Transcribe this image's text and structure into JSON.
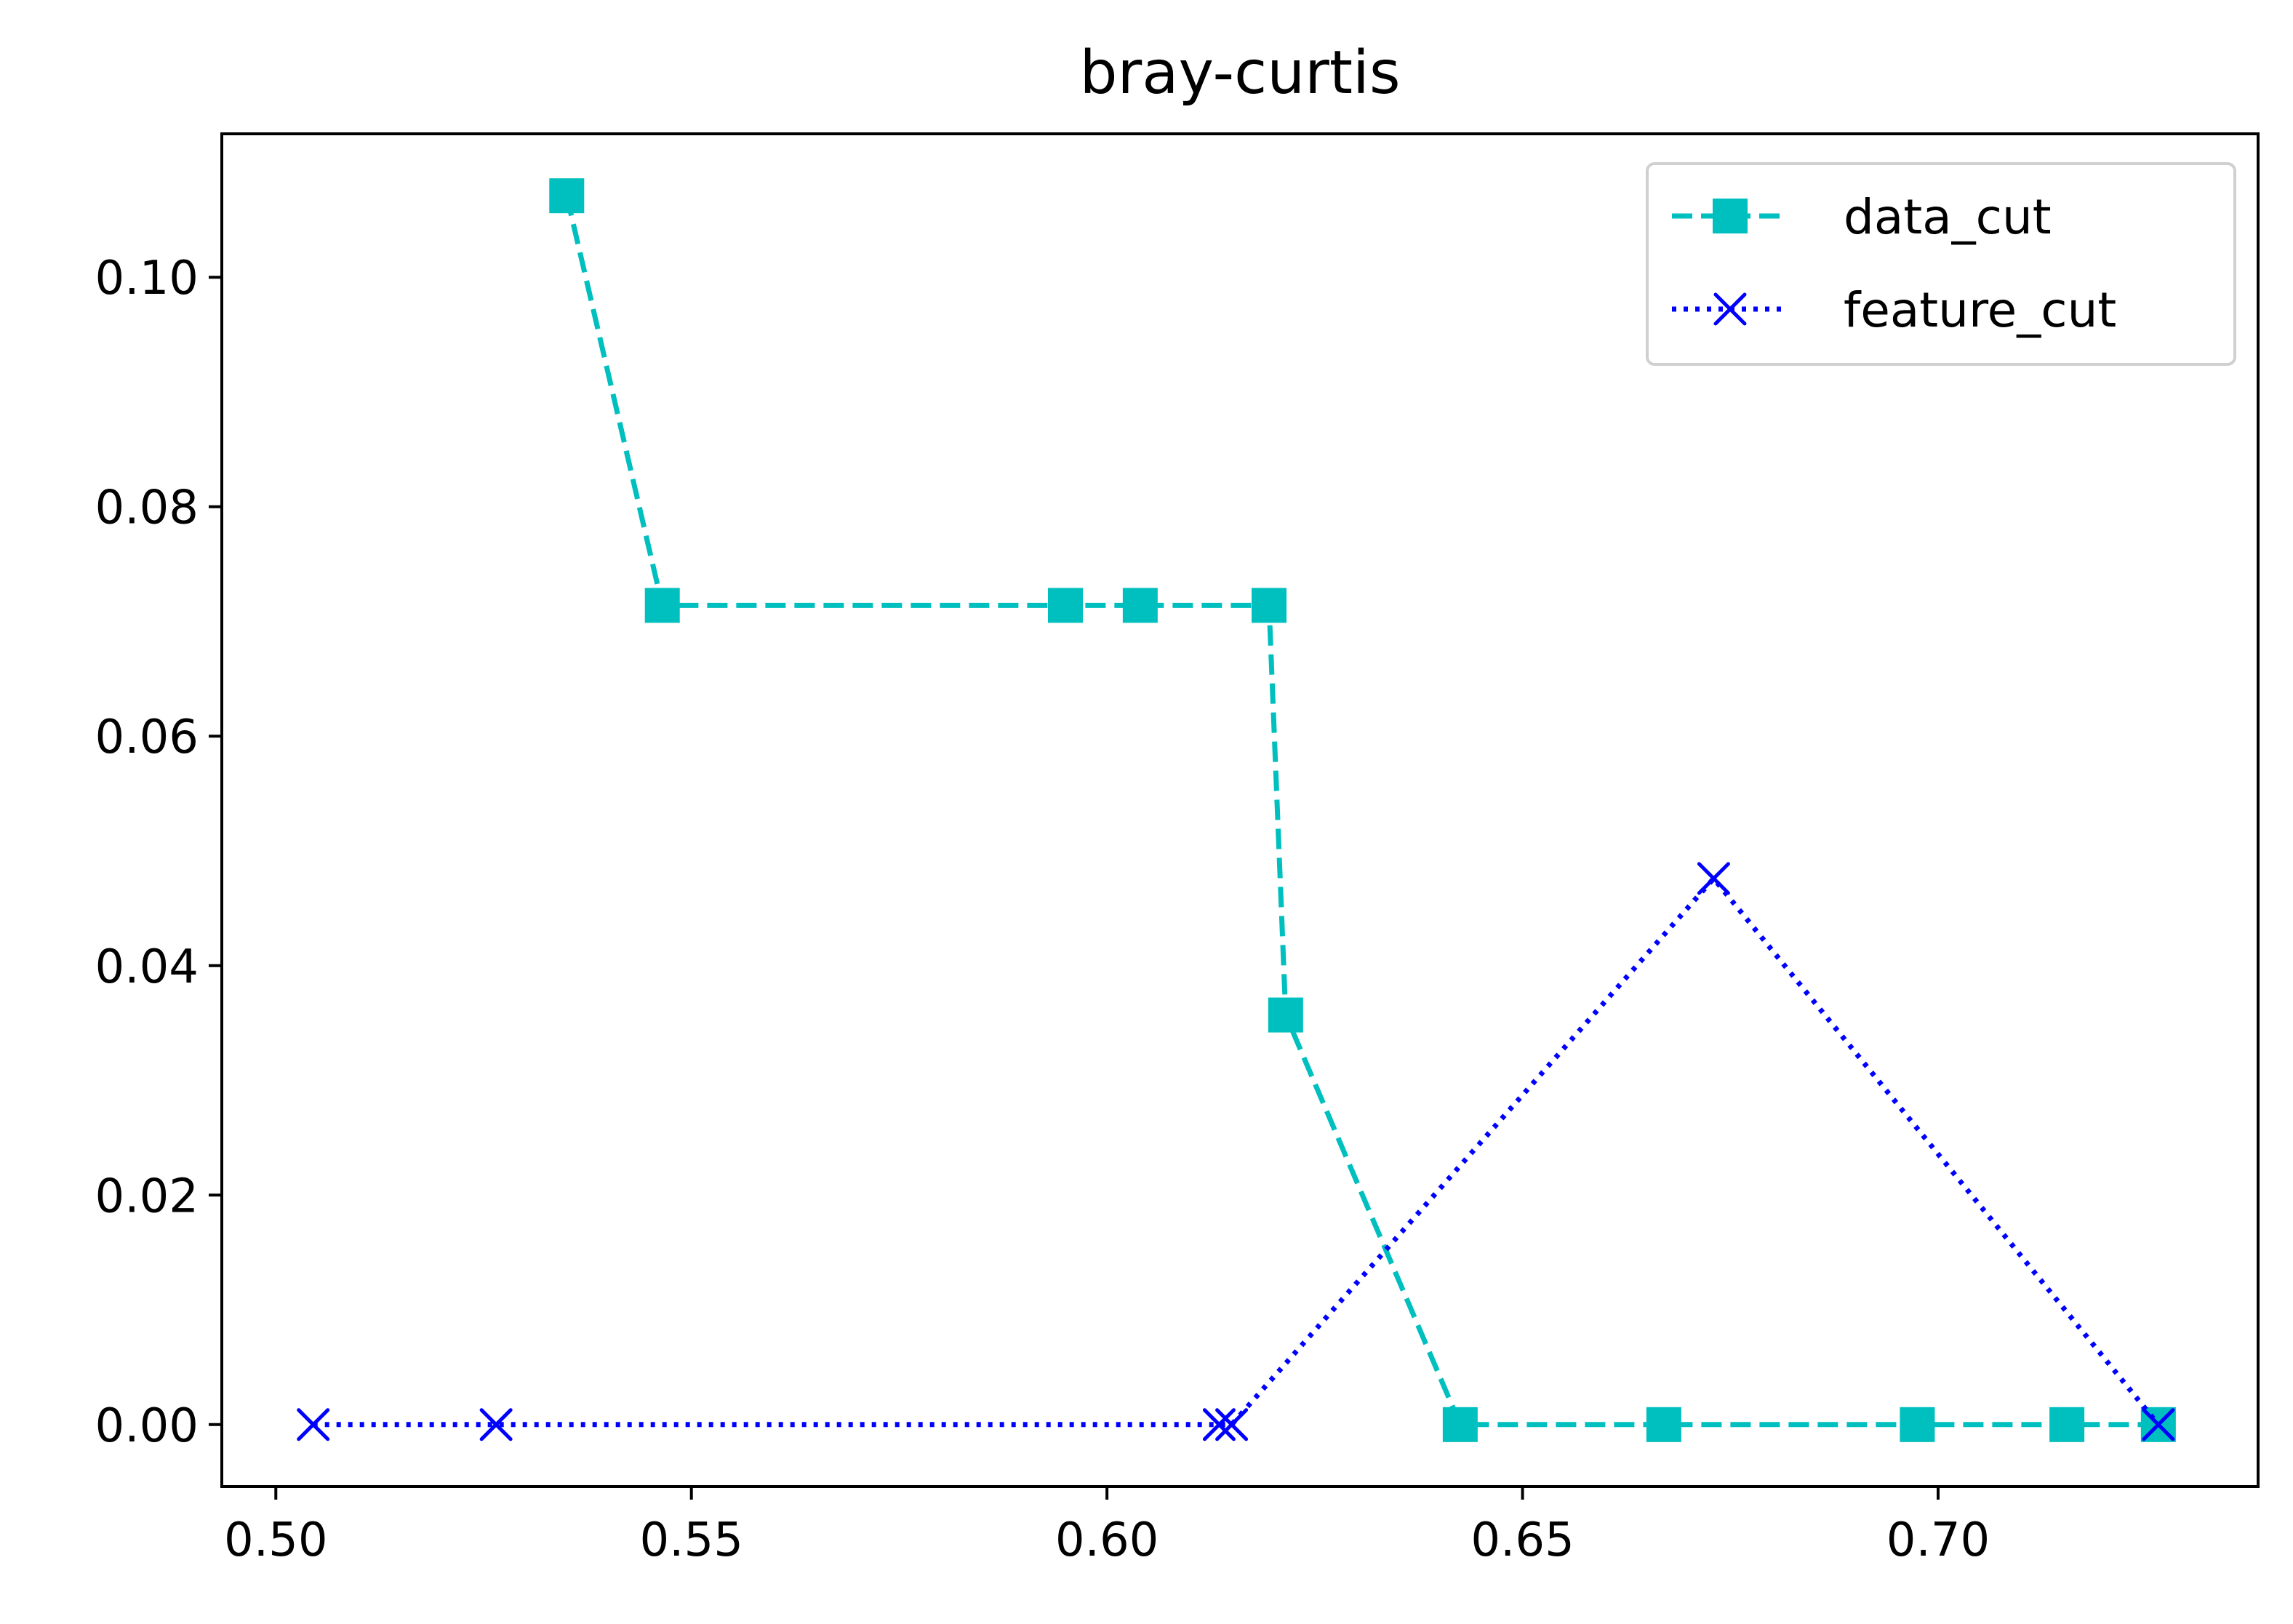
{
  "chart_data": {
    "type": "line",
    "title": "bray-curtis",
    "xlabel": "",
    "ylabel": "",
    "xlim": [
      0.4935,
      0.7385
    ],
    "ylim": [
      -0.0054,
      0.1125
    ],
    "x_ticks": [
      {
        "value": 0.5,
        "label": "0.50"
      },
      {
        "value": 0.55,
        "label": "0.55"
      },
      {
        "value": 0.6,
        "label": "0.60"
      },
      {
        "value": 0.65,
        "label": "0.65"
      },
      {
        "value": 0.7,
        "label": "0.70"
      }
    ],
    "y_ticks": [
      {
        "value": 0.0,
        "label": "0.00"
      },
      {
        "value": 0.02,
        "label": "0.02"
      },
      {
        "value": 0.04,
        "label": "0.04"
      },
      {
        "value": 0.06,
        "label": "0.06"
      },
      {
        "value": 0.08,
        "label": "0.08"
      },
      {
        "value": 0.1,
        "label": "0.10"
      }
    ],
    "grid": false,
    "legend_position": "top-right",
    "series": [
      {
        "name": "data_cut",
        "color": "#00bfbf",
        "line_style": "dashed",
        "marker": "square",
        "x": [
          0.535,
          0.5465,
          0.595,
          0.604,
          0.6195,
          0.6215,
          0.6425,
          0.667,
          0.6975,
          0.7155,
          0.7265
        ],
        "y": [
          0.1071,
          0.0714,
          0.0714,
          0.0714,
          0.0714,
          0.0357,
          0.0,
          0.0,
          0.0,
          0.0,
          0.0
        ]
      },
      {
        "name": "feature_cut",
        "color": "#0000ff",
        "line_style": "dotted",
        "marker": "x",
        "x": [
          0.5045,
          0.5265,
          0.6135,
          0.615,
          0.673,
          0.7265
        ],
        "y": [
          0.0,
          0.0,
          0.0,
          0.0,
          0.0476,
          0.0
        ]
      }
    ]
  }
}
